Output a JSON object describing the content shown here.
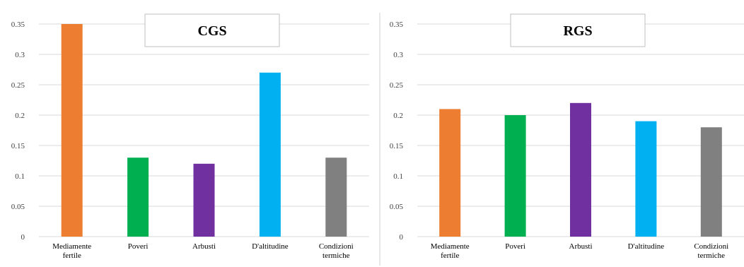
{
  "chart_data": [
    {
      "type": "bar",
      "title": "CGS",
      "categories": [
        [
          "Mediamente",
          "fertile"
        ],
        [
          "Poveri"
        ],
        [
          "Arbusti"
        ],
        [
          "D'altitudine"
        ],
        [
          "Condizioni",
          "termiche"
        ]
      ],
      "values": [
        0.35,
        0.13,
        0.12,
        0.27,
        0.13
      ],
      "colors": [
        "#ed7d31",
        "#00b050",
        "#7030a0",
        "#00b0f0",
        "#808080"
      ],
      "yticks": [
        "0",
        "0.05",
        "0.1",
        "0.15",
        "0.2",
        "0.25",
        "0.3",
        "0.35"
      ],
      "ylim": [
        0,
        0.35
      ],
      "grid": true,
      "legend": "none"
    },
    {
      "type": "bar",
      "title": "RGS",
      "categories": [
        [
          "Mediamente",
          "fertile"
        ],
        [
          "Poveri"
        ],
        [
          "Arbusti"
        ],
        [
          "D'altitudine"
        ],
        [
          "Condizioni",
          "termiche"
        ]
      ],
      "values": [
        0.21,
        0.2,
        0.22,
        0.19,
        0.18
      ],
      "colors": [
        "#ed7d31",
        "#00b050",
        "#7030a0",
        "#00b0f0",
        "#808080"
      ],
      "yticks": [
        "0",
        "0.05",
        "0.1",
        "0.15",
        "0.2",
        "0.25",
        "0.3",
        "0.35"
      ],
      "ylim": [
        0,
        0.35
      ],
      "grid": true,
      "legend": "none"
    }
  ]
}
